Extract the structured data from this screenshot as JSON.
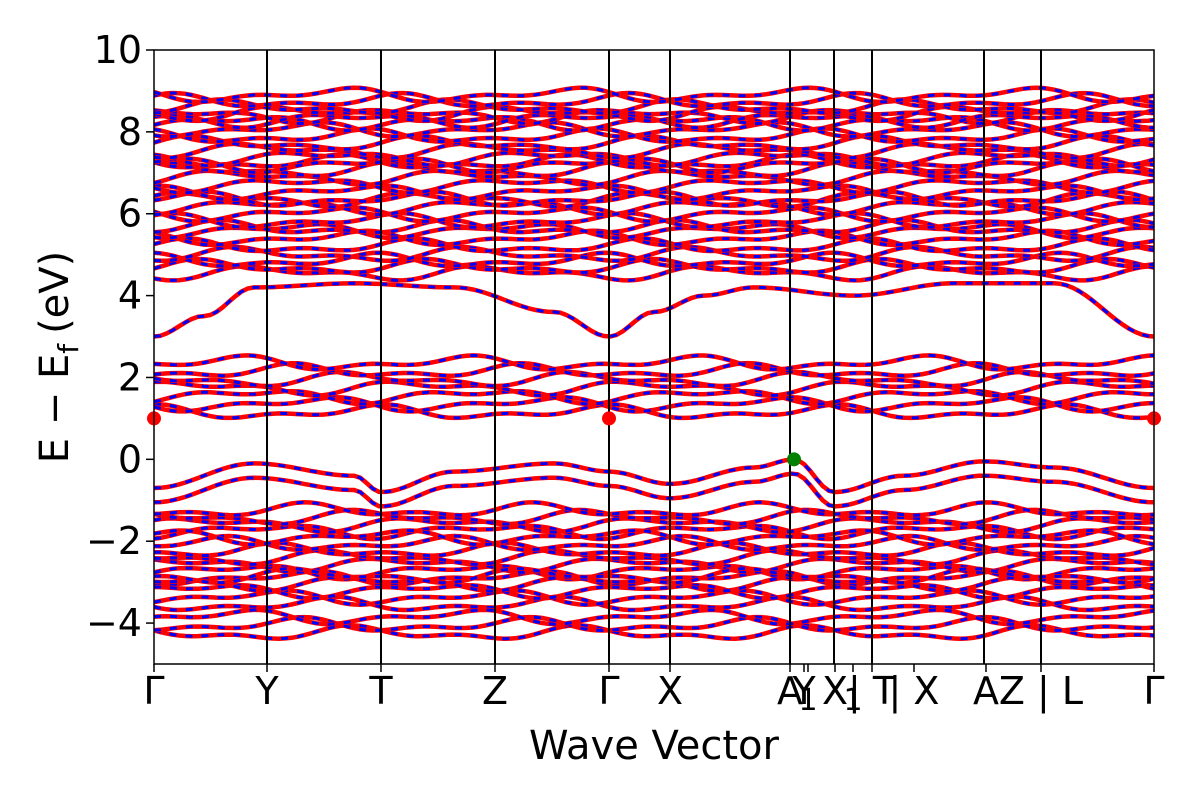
{
  "chart_data": {
    "type": "line",
    "title": "",
    "xlabel": "Wave Vector",
    "ylabel_parts": {
      "main": "E − E",
      "subscript": "f",
      "unit": "(eV)"
    },
    "ylim": [
      -5,
      10
    ],
    "y_ticks": [
      10,
      8,
      6,
      4,
      2,
      0,
      -2,
      -4
    ],
    "y_tick_labels": [
      "10",
      "8",
      "6",
      "4",
      "2",
      "0",
      "−2",
      "−4"
    ],
    "x_range": [
      0,
      1
    ],
    "kpoints": [
      {
        "label": "Γ",
        "x": 0.0
      },
      {
        "label": "Y",
        "x": 0.113
      },
      {
        "label": "T",
        "x": 0.227
      },
      {
        "label": "Z",
        "x": 0.341
      },
      {
        "label": "Γ",
        "x": 0.455
      },
      {
        "label": "X",
        "x": 0.516
      },
      {
        "label": "A",
        "x": 0.636
      },
      {
        "label": "Y",
        "x": 0.65
      },
      {
        "label": "1",
        "x": 0.654
      },
      {
        "label": "X",
        "x": 0.681
      },
      {
        "label": "1",
        "x": 0.699
      },
      {
        "label": "| T",
        "x": 0.718
      },
      {
        "label": "| X",
        "x": 0.76
      },
      {
        "label": "A",
        "x": 0.832
      },
      {
        "label": "Z | L",
        "x": 0.887
      },
      {
        "label": "Γ",
        "x": 1.0
      }
    ],
    "vlines": [
      0.113,
      0.227,
      0.341,
      0.455,
      0.516,
      0.636,
      0.68,
      0.718,
      0.83,
      0.887
    ],
    "bands": {
      "conduction_minimum": {
        "x": [
          0.0,
          0.05,
          0.1,
          0.2,
          0.3,
          0.4,
          0.455,
          0.5,
          0.55,
          0.6,
          0.7,
          0.8,
          0.9,
          1.0
        ],
        "y": [
          3.0,
          3.5,
          4.2,
          4.3,
          4.2,
          3.6,
          3.0,
          3.6,
          4.0,
          4.2,
          4.0,
          4.3,
          4.3,
          3.0
        ]
      },
      "conduction_groups": [
        {
          "center": 4.7,
          "count": 3,
          "spread": 0.15
        },
        {
          "center": 5.3,
          "count": 4,
          "spread": 0.3
        },
        {
          "center": 6.0,
          "count": 5,
          "spread": 0.35
        },
        {
          "center": 6.8,
          "count": 6,
          "spread": 0.45
        },
        {
          "center": 7.8,
          "count": 8,
          "spread": 0.6
        },
        {
          "center": 8.6,
          "count": 5,
          "spread": 0.3
        }
      ],
      "upper_valence_group": {
        "center": 1.75,
        "count": 7,
        "spread": 0.6
      },
      "valence_top": {
        "x": [
          0.0,
          0.1,
          0.2,
          0.227,
          0.3,
          0.4,
          0.455,
          0.516,
          0.6,
          0.64,
          0.68,
          0.75,
          0.83,
          0.9,
          1.0
        ],
        "y": [
          -0.7,
          -0.1,
          -0.4,
          -0.8,
          -0.3,
          -0.1,
          -0.3,
          -0.6,
          -0.2,
          0.0,
          -0.8,
          -0.4,
          -0.05,
          -0.2,
          -0.7
        ]
      },
      "valence_groups": [
        {
          "center": -1.5,
          "count": 4,
          "spread": 0.25
        },
        {
          "center": -2.4,
          "count": 7,
          "spread": 0.5
        },
        {
          "center": -3.2,
          "count": 5,
          "spread": 0.35
        },
        {
          "center": -4.05,
          "count": 3,
          "spread": 0.2
        }
      ]
    },
    "series": [
      {
        "name": "",
        "color": "#ff0000",
        "style": "solid"
      },
      {
        "name": "",
        "color": "#0000ff",
        "style": "dashed"
      }
    ],
    "markers": [
      {
        "kind": "cbm",
        "color": "#ff0000",
        "points": [
          {
            "x": 0.0,
            "y": 1.0
          },
          {
            "x": 0.455,
            "y": 1.0
          },
          {
            "x": 1.0,
            "y": 1.0
          }
        ]
      },
      {
        "kind": "vbm",
        "color": "#008000",
        "points": [
          {
            "x": 0.64,
            "y": 0.0
          }
        ]
      }
    ]
  }
}
